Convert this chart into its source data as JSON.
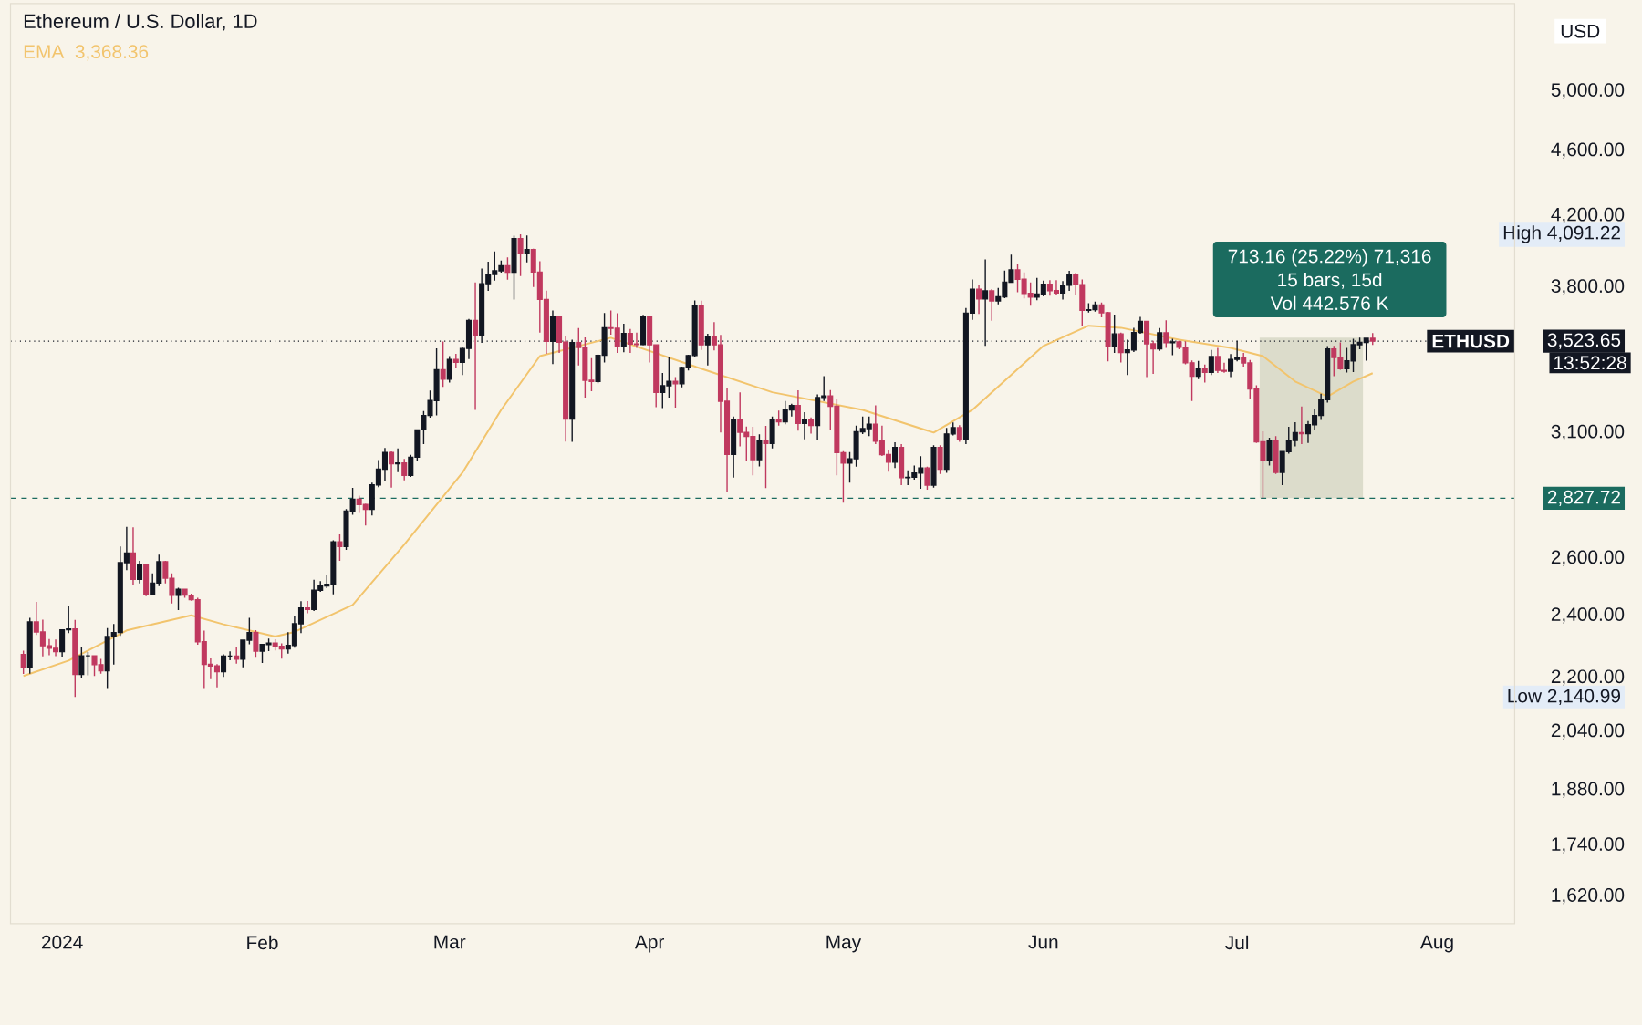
{
  "chart_data": {
    "type": "candlestick",
    "title": "Ethereum / U.S. Dollar, 1D",
    "ylabel": "USD",
    "log": true,
    "legend": "top left",
    "xlim": [
      "2023-12-24",
      "2024-08-13"
    ],
    "ylim": [
      1559,
      5651
    ],
    "xticks": [
      {
        "value": "2024-01-01",
        "label": "2024"
      },
      {
        "value": "2024-02-01",
        "label": "Feb"
      },
      {
        "value": "2024-03-01",
        "label": "Mar"
      },
      {
        "value": "2024-04-01",
        "label": "Apr"
      },
      {
        "value": "2024-05-01",
        "label": "May"
      },
      {
        "value": "2024-06-01",
        "label": "Jun"
      },
      {
        "value": "2024-07-01",
        "label": "Jul"
      },
      {
        "value": "2024-08-01",
        "label": "Aug"
      }
    ],
    "yticks": [
      {
        "value": 1620,
        "label": "1,620.00"
      },
      {
        "value": 1740,
        "label": "1,740.00"
      },
      {
        "value": 1880,
        "label": "1,880.00"
      },
      {
        "value": 2040,
        "label": "2,040.00"
      },
      {
        "value": 2140.99,
        "label": "Low 2,140.99"
      },
      {
        "value": 2200,
        "label": "2,200.00"
      },
      {
        "value": 2400,
        "label": "2,400.00"
      },
      {
        "value": 2600,
        "label": "2,600.00"
      },
      {
        "value": 2827.72,
        "label": "2,827.72"
      },
      {
        "value": 3100,
        "label": "3,100.00"
      },
      {
        "value": 3523.65,
        "label": "3,523.65"
      },
      {
        "value": 3800,
        "label": "3,800.00"
      },
      {
        "value": 4091.22,
        "label": "High 4,091.22"
      },
      {
        "value": 4200,
        "label": "4,200.00"
      },
      {
        "value": 4600,
        "label": "4,600.00"
      },
      {
        "value": 5000,
        "label": "5,000.00"
      }
    ],
    "x": [
      "2023-12-26",
      "2023-12-27",
      "2023-12-28",
      "2023-12-29",
      "2023-12-30",
      "2023-12-31",
      "2024-01-01",
      "2024-01-02",
      "2024-01-03",
      "2024-01-04",
      "2024-01-05",
      "2024-01-06",
      "2024-01-07",
      "2024-01-08",
      "2024-01-09",
      "2024-01-10",
      "2024-01-11",
      "2024-01-12",
      "2024-01-13",
      "2024-01-14",
      "2024-01-15",
      "2024-01-16",
      "2024-01-17",
      "2024-01-18",
      "2024-01-19",
      "2024-01-20",
      "2024-01-21",
      "2024-01-22",
      "2024-01-23",
      "2024-01-24",
      "2024-01-25",
      "2024-01-26",
      "2024-01-27",
      "2024-01-28",
      "2024-01-29",
      "2024-01-30",
      "2024-01-31",
      "2024-02-01",
      "2024-02-02",
      "2024-02-03",
      "2024-02-04",
      "2024-02-05",
      "2024-02-06",
      "2024-02-07",
      "2024-02-08",
      "2024-02-09",
      "2024-02-10",
      "2024-02-11",
      "2024-02-12",
      "2024-02-13",
      "2024-02-14",
      "2024-02-15",
      "2024-02-16",
      "2024-02-17",
      "2024-02-18",
      "2024-02-19",
      "2024-02-20",
      "2024-02-21",
      "2024-02-22",
      "2024-02-23",
      "2024-02-24",
      "2024-02-25",
      "2024-02-26",
      "2024-02-27",
      "2024-02-28",
      "2024-02-29",
      "2024-03-01",
      "2024-03-02",
      "2024-03-03",
      "2024-03-04",
      "2024-03-05",
      "2024-03-06",
      "2024-03-07",
      "2024-03-08",
      "2024-03-09",
      "2024-03-10",
      "2024-03-11",
      "2024-03-12",
      "2024-03-13",
      "2024-03-14",
      "2024-03-15",
      "2024-03-16",
      "2024-03-17",
      "2024-03-18",
      "2024-03-19",
      "2024-03-20",
      "2024-03-21",
      "2024-03-22",
      "2024-03-23",
      "2024-03-24",
      "2024-03-25",
      "2024-03-26",
      "2024-03-27",
      "2024-03-28",
      "2024-03-29",
      "2024-03-30",
      "2024-03-31",
      "2024-04-01",
      "2024-04-02",
      "2024-04-03",
      "2024-04-04",
      "2024-04-05",
      "2024-04-06",
      "2024-04-07",
      "2024-04-08",
      "2024-04-09",
      "2024-04-10",
      "2024-04-11",
      "2024-04-12",
      "2024-04-13",
      "2024-04-14",
      "2024-04-15",
      "2024-04-16",
      "2024-04-17",
      "2024-04-18",
      "2024-04-19",
      "2024-04-20",
      "2024-04-21",
      "2024-04-22",
      "2024-04-23",
      "2024-04-24",
      "2024-04-25",
      "2024-04-26",
      "2024-04-27",
      "2024-04-28",
      "2024-04-29",
      "2024-04-30",
      "2024-05-01",
      "2024-05-02",
      "2024-05-03",
      "2024-05-04",
      "2024-05-05",
      "2024-05-06",
      "2024-05-07",
      "2024-05-08",
      "2024-05-09",
      "2024-05-10",
      "2024-05-11",
      "2024-05-12",
      "2024-05-13",
      "2024-05-14",
      "2024-05-15",
      "2024-05-16",
      "2024-05-17",
      "2024-05-18",
      "2024-05-19",
      "2024-05-20",
      "2024-05-21",
      "2024-05-22",
      "2024-05-23",
      "2024-05-24",
      "2024-05-25",
      "2024-05-26",
      "2024-05-27",
      "2024-05-28",
      "2024-05-29",
      "2024-05-30",
      "2024-05-31",
      "2024-06-01",
      "2024-06-02",
      "2024-06-03",
      "2024-06-04",
      "2024-06-05",
      "2024-06-06",
      "2024-06-07",
      "2024-06-08",
      "2024-06-09",
      "2024-06-10",
      "2024-06-11",
      "2024-06-12",
      "2024-06-13",
      "2024-06-14",
      "2024-06-15",
      "2024-06-16",
      "2024-06-17",
      "2024-06-18",
      "2024-06-19",
      "2024-06-20",
      "2024-06-21",
      "2024-06-22",
      "2024-06-23",
      "2024-06-24",
      "2024-06-25",
      "2024-06-26",
      "2024-06-27",
      "2024-06-28",
      "2024-06-29",
      "2024-06-30",
      "2024-07-01",
      "2024-07-02",
      "2024-07-03",
      "2024-07-04",
      "2024-07-05",
      "2024-07-06",
      "2024-07-07",
      "2024-07-08",
      "2024-07-09",
      "2024-07-10",
      "2024-07-11",
      "2024-07-12",
      "2024-07-13",
      "2024-07-14",
      "2024-07-15",
      "2024-07-16",
      "2024-07-17",
      "2024-07-18",
      "2024-07-19",
      "2024-07-20",
      "2024-07-21",
      "2024-07-22"
    ],
    "ohlc": [
      [
        2272,
        2284,
        2211,
        2230
      ],
      [
        2230,
        2392,
        2212,
        2378
      ],
      [
        2378,
        2446,
        2335,
        2345
      ],
      [
        2345,
        2386,
        2266,
        2300
      ],
      [
        2300,
        2322,
        2270,
        2292
      ],
      [
        2292,
        2320,
        2267,
        2281
      ],
      [
        2281,
        2352,
        2265,
        2352
      ],
      [
        2352,
        2431,
        2341,
        2355
      ],
      [
        2355,
        2385,
        2140.99,
        2210
      ],
      [
        2210,
        2295,
        2200,
        2268
      ],
      [
        2268,
        2280,
        2207,
        2268
      ],
      [
        2268,
        2270,
        2205,
        2240
      ],
      [
        2240,
        2258,
        2212,
        2221
      ],
      [
        2221,
        2358,
        2168,
        2330
      ],
      [
        2330,
        2371,
        2240,
        2343
      ],
      [
        2343,
        2643,
        2332,
        2584
      ],
      [
        2584,
        2717,
        2557,
        2619
      ],
      [
        2619,
        2715,
        2505,
        2524
      ],
      [
        2524,
        2590,
        2510,
        2575
      ],
      [
        2575,
        2580,
        2465,
        2472
      ],
      [
        2472,
        2545,
        2470,
        2511
      ],
      [
        2511,
        2613,
        2500,
        2587
      ],
      [
        2587,
        2590,
        2510,
        2528
      ],
      [
        2528,
        2545,
        2440,
        2468
      ],
      [
        2468,
        2495,
        2418,
        2489
      ],
      [
        2489,
        2490,
        2460,
        2469
      ],
      [
        2469,
        2474,
        2450,
        2453
      ],
      [
        2453,
        2460,
        2303,
        2313
      ],
      [
        2313,
        2349,
        2168,
        2241
      ],
      [
        2241,
        2260,
        2195,
        2236
      ],
      [
        2236,
        2242,
        2170,
        2218
      ],
      [
        2218,
        2273,
        2202,
        2267
      ],
      [
        2267,
        2282,
        2254,
        2267
      ],
      [
        2267,
        2296,
        2243,
        2257
      ],
      [
        2257,
        2320,
        2232,
        2318
      ],
      [
        2318,
        2392,
        2305,
        2343
      ],
      [
        2343,
        2351,
        2262,
        2283
      ],
      [
        2283,
        2305,
        2245,
        2304
      ],
      [
        2304,
        2323,
        2283,
        2309
      ],
      [
        2309,
        2321,
        2285,
        2298
      ],
      [
        2298,
        2308,
        2259,
        2290
      ],
      [
        2290,
        2344,
        2275,
        2301
      ],
      [
        2301,
        2398,
        2294,
        2372
      ],
      [
        2372,
        2448,
        2341,
        2425
      ],
      [
        2425,
        2449,
        2407,
        2420
      ],
      [
        2420,
        2523,
        2415,
        2486
      ],
      [
        2486,
        2518,
        2480,
        2501
      ],
      [
        2501,
        2538,
        2493,
        2507
      ],
      [
        2507,
        2666,
        2472,
        2660
      ],
      [
        2660,
        2688,
        2590,
        2643
      ],
      [
        2643,
        2785,
        2630,
        2777
      ],
      [
        2777,
        2869,
        2763,
        2824
      ],
      [
        2824,
        2838,
        2770,
        2803
      ],
      [
        2803,
        2806,
        2722,
        2784
      ],
      [
        2784,
        2890,
        2760,
        2881
      ],
      [
        2881,
        2983,
        2872,
        2945
      ],
      [
        2945,
        3034,
        2895,
        3015
      ],
      [
        3015,
        3019,
        2870,
        2967
      ],
      [
        2967,
        3032,
        2933,
        2971
      ],
      [
        2971,
        2988,
        2899,
        2920
      ],
      [
        2920,
        3005,
        2913,
        2995
      ],
      [
        2995,
        3113,
        2980,
        3112
      ],
      [
        3112,
        3195,
        3050,
        3175
      ],
      [
        3175,
        3288,
        3165,
        3242
      ],
      [
        3242,
        3488,
        3175,
        3385
      ],
      [
        3385,
        3522,
        3305,
        3340
      ],
      [
        3340,
        3450,
        3325,
        3434
      ],
      [
        3434,
        3461,
        3394,
        3420
      ],
      [
        3420,
        3495,
        3360,
        3487
      ],
      [
        3487,
        3634,
        3436,
        3627
      ],
      [
        3627,
        3825,
        3200,
        3553
      ],
      [
        3553,
        3900,
        3515,
        3818
      ],
      [
        3818,
        3937,
        3780,
        3868
      ],
      [
        3868,
        3995,
        3835,
        3888
      ],
      [
        3888,
        3944,
        3878,
        3916
      ],
      [
        3916,
        3961,
        3840,
        3880
      ],
      [
        3880,
        4083,
        3735,
        4066
      ],
      [
        4066,
        4091.22,
        3860,
        3981
      ],
      [
        3981,
        4085,
        3934,
        4004
      ],
      [
        4004,
        4010,
        3800,
        3881
      ],
      [
        3881,
        3941,
        3565,
        3735
      ],
      [
        3735,
        3782,
        3461,
        3523
      ],
      [
        3523,
        3678,
        3412,
        3644
      ],
      [
        3644,
        3647,
        3466,
        3518
      ],
      [
        3518,
        3547,
        3061,
        3159
      ],
      [
        3159,
        3530,
        3060,
        3516
      ],
      [
        3516,
        3588,
        3405,
        3492
      ],
      [
        3492,
        3542,
        3256,
        3335
      ],
      [
        3335,
        3440,
        3285,
        3330
      ],
      [
        3330,
        3458,
        3321,
        3454
      ],
      [
        3454,
        3665,
        3420,
        3590
      ],
      [
        3590,
        3678,
        3555,
        3587
      ],
      [
        3587,
        3664,
        3465,
        3500
      ],
      [
        3500,
        3610,
        3469,
        3561
      ],
      [
        3561,
        3584,
        3465,
        3509
      ],
      [
        3509,
        3565,
        3490,
        3507
      ],
      [
        3507,
        3655,
        3502,
        3647
      ],
      [
        3647,
        3647,
        3420,
        3505
      ],
      [
        3505,
        3505,
        3212,
        3279
      ],
      [
        3279,
        3370,
        3208,
        3310
      ],
      [
        3310,
        3445,
        3255,
        3330
      ],
      [
        3330,
        3350,
        3210,
        3319
      ],
      [
        3319,
        3400,
        3303,
        3396
      ],
      [
        3396,
        3457,
        3382,
        3453
      ],
      [
        3453,
        3730,
        3444,
        3700
      ],
      [
        3700,
        3728,
        3480,
        3505
      ],
      [
        3505,
        3560,
        3405,
        3544
      ],
      [
        3544,
        3618,
        3478,
        3505
      ],
      [
        3505,
        3554,
        3100,
        3239
      ],
      [
        3239,
        3298,
        2852,
        3007
      ],
      [
        3007,
        3170,
        2910,
        3157
      ],
      [
        3157,
        3280,
        3040,
        3101
      ],
      [
        3101,
        3126,
        2980,
        3083
      ],
      [
        3083,
        3125,
        2920,
        2985
      ],
      [
        2985,
        3092,
        2956,
        3065
      ],
      [
        3065,
        3129,
        2868,
        3053
      ],
      [
        3053,
        3170,
        3032,
        3155
      ],
      [
        3155,
        3197,
        3130,
        3147
      ],
      [
        3147,
        3240,
        3136,
        3200
      ],
      [
        3200,
        3228,
        3170,
        3219
      ],
      [
        3219,
        3289,
        3108,
        3140
      ],
      [
        3140,
        3190,
        3071,
        3156
      ],
      [
        3156,
        3166,
        3095,
        3131
      ],
      [
        3131,
        3270,
        3070,
        3256
      ],
      [
        3256,
        3355,
        3240,
        3263
      ],
      [
        3263,
        3290,
        3110,
        3216
      ],
      [
        3216,
        3250,
        2920,
        3014
      ],
      [
        3014,
        3020,
        2810,
        2970
      ],
      [
        2970,
        3016,
        2890,
        2988
      ],
      [
        2988,
        3130,
        2955,
        3103
      ],
      [
        3103,
        3170,
        3093,
        3117
      ],
      [
        3117,
        3170,
        3085,
        3136
      ],
      [
        3136,
        3220,
        3050,
        3063
      ],
      [
        3063,
        3130,
        3000,
        3006
      ],
      [
        3006,
        3026,
        2935,
        2974
      ],
      [
        2974,
        3058,
        2950,
        3036
      ],
      [
        3036,
        3050,
        2880,
        2910
      ],
      [
        2910,
        2940,
        2880,
        2912
      ],
      [
        2912,
        2960,
        2902,
        2929
      ],
      [
        2929,
        2999,
        2865,
        2950
      ],
      [
        2950,
        2955,
        2862,
        2880
      ],
      [
        2880,
        3045,
        2870,
        3036
      ],
      [
        3036,
        3045,
        2925,
        2945
      ],
      [
        2945,
        3120,
        2930,
        3094
      ],
      [
        3094,
        3144,
        3088,
        3121
      ],
      [
        3121,
        3132,
        3060,
        3071
      ],
      [
        3071,
        3690,
        3050,
        3664
      ],
      [
        3664,
        3841,
        3630,
        3789
      ],
      [
        3789,
        3812,
        3660,
        3738
      ],
      [
        3738,
        3950,
        3500,
        3780
      ],
      [
        3780,
        3790,
        3625,
        3727
      ],
      [
        3727,
        3796,
        3710,
        3749
      ],
      [
        3749,
        3890,
        3742,
        3826
      ],
      [
        3826,
        3977,
        3825,
        3893
      ],
      [
        3893,
        3928,
        3773,
        3842
      ],
      [
        3842,
        3880,
        3740,
        3767
      ],
      [
        3767,
        3825,
        3702,
        3747
      ],
      [
        3747,
        3849,
        3731,
        3763
      ],
      [
        3763,
        3834,
        3751,
        3815
      ],
      [
        3815,
        3838,
        3754,
        3781
      ],
      [
        3781,
        3838,
        3760,
        3768
      ],
      [
        3768,
        3832,
        3735,
        3810
      ],
      [
        3810,
        3888,
        3780,
        3864
      ],
      [
        3864,
        3877,
        3760,
        3813
      ],
      [
        3813,
        3841,
        3600,
        3679
      ],
      [
        3679,
        3715,
        3667,
        3682
      ],
      [
        3682,
        3724,
        3672,
        3706
      ],
      [
        3706,
        3719,
        3643,
        3666
      ],
      [
        3666,
        3670,
        3425,
        3497
      ],
      [
        3497,
        3656,
        3465,
        3559
      ],
      [
        3559,
        3565,
        3420,
        3468
      ],
      [
        3468,
        3530,
        3360,
        3480
      ],
      [
        3480,
        3590,
        3470,
        3566
      ],
      [
        3566,
        3645,
        3560,
        3622
      ],
      [
        3622,
        3625,
        3350,
        3510
      ],
      [
        3510,
        3525,
        3365,
        3485
      ],
      [
        3485,
        3588,
        3475,
        3564
      ],
      [
        3564,
        3627,
        3490,
        3515
      ],
      [
        3515,
        3535,
        3455,
        3519
      ],
      [
        3519,
        3525,
        3483,
        3493
      ],
      [
        3493,
        3522,
        3411,
        3418
      ],
      [
        3418,
        3430,
        3240,
        3354
      ],
      [
        3354,
        3427,
        3341,
        3393
      ],
      [
        3393,
        3410,
        3325,
        3372
      ],
      [
        3372,
        3480,
        3360,
        3448
      ],
      [
        3448,
        3490,
        3370,
        3382
      ],
      [
        3382,
        3418,
        3371,
        3378
      ],
      [
        3378,
        3460,
        3350,
        3434
      ],
      [
        3434,
        3525,
        3425,
        3441
      ],
      [
        3441,
        3465,
        3400,
        3417
      ],
      [
        3417,
        3432,
        3250,
        3295
      ],
      [
        3295,
        3312,
        3055,
        3060
      ],
      [
        3060,
        3105,
        2827.72,
        2983
      ],
      [
        2983,
        3078,
        2960,
        3066
      ],
      [
        3066,
        3085,
        2925,
        2932
      ],
      [
        2932,
        3020,
        2880,
        3018
      ],
      [
        3018,
        3125,
        3010,
        3066
      ],
      [
        3066,
        3145,
        3040,
        3100
      ],
      [
        3100,
        3215,
        3050,
        3095
      ],
      [
        3095,
        3150,
        3055,
        3134
      ],
      [
        3134,
        3205,
        3110,
        3175
      ],
      [
        3175,
        3273,
        3155,
        3246
      ],
      [
        3246,
        3499,
        3233,
        3485
      ],
      [
        3485,
        3500,
        3355,
        3443
      ],
      [
        3443,
        3517,
        3385,
        3390
      ],
      [
        3390,
        3490,
        3372,
        3427
      ],
      [
        3427,
        3535,
        3374,
        3506
      ],
      [
        3506,
        3540.88,
        3483,
        3517
      ],
      [
        3517,
        3539,
        3428,
        3537
      ],
      [
        3537,
        3563,
        3505,
        3523.65
      ]
    ],
    "series": [
      {
        "type": "line",
        "name": "EMA",
        "color": "#f2c46d",
        "x": [
          "2023-12-26",
          "2024-01-02",
          "2024-01-11",
          "2024-01-21",
          "2024-01-26",
          "2024-02-03",
          "2024-02-06",
          "2024-02-15",
          "2024-02-23",
          "2024-03-03",
          "2024-03-09",
          "2024-03-15",
          "2024-03-26",
          "2024-04-09",
          "2024-04-20",
          "2024-05-04",
          "2024-05-15",
          "2024-05-21",
          "2024-06-01",
          "2024-06-08",
          "2024-06-13",
          "2024-06-22",
          "2024-06-30",
          "2024-07-05",
          "2024-07-10",
          "2024-07-15",
          "2024-07-19",
          "2024-07-22"
        ],
        "values": [
          2205,
          2253,
          2350,
          2400,
          2370,
          2330,
          2345,
          2435,
          2650,
          2930,
          3200,
          3450,
          3540,
          3390,
          3280,
          3200,
          3100,
          3200,
          3500,
          3600,
          3590,
          3530,
          3490,
          3450,
          3330,
          3260,
          3330,
          3368.36
        ]
      }
    ],
    "ref_lines": [
      {
        "axis": "y",
        "value": 3523.65,
        "label": "ETHUSD",
        "color": "#131722",
        "line_style": "dotted"
      },
      {
        "axis": "y",
        "value": 2827.72,
        "color": "#1b6b5f",
        "line_style": "dashed"
      }
    ],
    "bands": [
      {
        "axis": "x",
        "from": "2024-07-05",
        "to": "2024-07-20",
        "color": "#dcdccb"
      }
    ],
    "annotations": [
      {
        "text": "3,368.36"
      },
      {
        "text": "13:52:28"
      },
      "713.16 (25.22%) 71,316",
      "15 bars, 15d",
      "Vol 442.576 K"
    ]
  }
}
